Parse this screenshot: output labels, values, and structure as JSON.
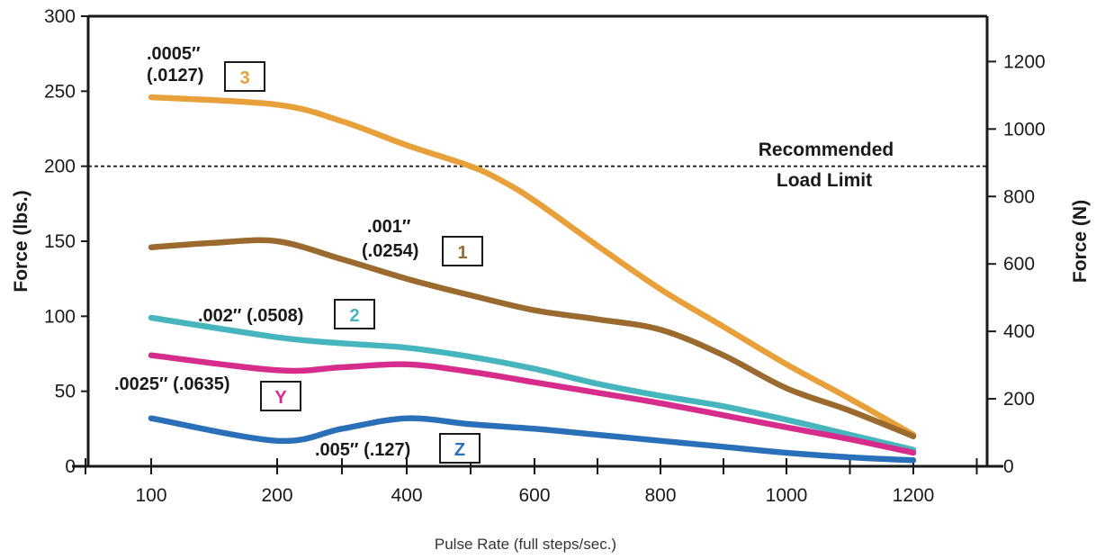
{
  "chart_data": {
    "type": "line",
    "xlabel": "Pulse Rate (full steps/sec.)",
    "ylabel_left": "Force (lbs.)",
    "ylabel_right": "Force (N)",
    "x_ticks": [
      "100",
      "200",
      "400",
      "600",
      "800",
      "1000",
      "1200"
    ],
    "x_tick_positions": [
      100,
      200,
      400,
      600,
      800,
      1000,
      1200
    ],
    "ylim_left": [
      0,
      300
    ],
    "yticks_left": [
      0,
      50,
      100,
      150,
      200,
      250,
      300
    ],
    "ylim_right": [
      0,
      1334.5
    ],
    "yticks_right": [
      0,
      200,
      400,
      600,
      800,
      1000,
      1200
    ],
    "recommended_load_limit": {
      "value": 200,
      "label_line1": "Recommended",
      "label_line2": "Load Limit"
    },
    "series": [
      {
        "name": "3",
        "color": "#E8A13A",
        "annotation_line1": ".0005″",
        "annotation_line2": "(.0127)",
        "points": [
          [
            100,
            246
          ],
          [
            200,
            241
          ],
          [
            300,
            230
          ],
          [
            400,
            214
          ],
          [
            500,
            200
          ],
          [
            550,
            190
          ],
          [
            600,
            177
          ],
          [
            700,
            147
          ],
          [
            800,
            118
          ],
          [
            900,
            93
          ],
          [
            1000,
            68
          ],
          [
            1100,
            45
          ],
          [
            1200,
            21
          ]
        ]
      },
      {
        "name": "1",
        "color": "#9A6A2E",
        "annotation_line1": ".001″",
        "annotation_line2": "(.0254)",
        "points": [
          [
            100,
            146
          ],
          [
            150,
            149
          ],
          [
            200,
            150
          ],
          [
            300,
            138
          ],
          [
            400,
            125
          ],
          [
            500,
            114
          ],
          [
            600,
            104
          ],
          [
            700,
            98
          ],
          [
            800,
            91
          ],
          [
            900,
            74
          ],
          [
            1000,
            52
          ],
          [
            1100,
            37
          ],
          [
            1200,
            20
          ]
        ]
      },
      {
        "name": "2",
        "color": "#46B5BD",
        "annotation_line1": ".002″ (.0508)",
        "points": [
          [
            100,
            99
          ],
          [
            200,
            86
          ],
          [
            300,
            82
          ],
          [
            400,
            79
          ],
          [
            500,
            73
          ],
          [
            600,
            65
          ],
          [
            700,
            55
          ],
          [
            800,
            47
          ],
          [
            900,
            40
          ],
          [
            1000,
            31
          ],
          [
            1100,
            21
          ],
          [
            1200,
            11
          ]
        ]
      },
      {
        "name": "Y",
        "color": "#D62D8C",
        "annotation_line1": ".0025″ (.0635)",
        "points": [
          [
            100,
            74
          ],
          [
            200,
            64
          ],
          [
            300,
            66
          ],
          [
            400,
            68
          ],
          [
            500,
            63
          ],
          [
            600,
            56
          ],
          [
            700,
            49
          ],
          [
            800,
            42
          ],
          [
            900,
            34
          ],
          [
            1000,
            26
          ],
          [
            1100,
            18
          ],
          [
            1200,
            9
          ]
        ]
      },
      {
        "name": "Z",
        "color": "#2A70B8",
        "annotation_line1": ".005″ (.127)",
        "points": [
          [
            100,
            32
          ],
          [
            200,
            17
          ],
          [
            300,
            25
          ],
          [
            400,
            32
          ],
          [
            500,
            28
          ],
          [
            600,
            25
          ],
          [
            700,
            21
          ],
          [
            800,
            17
          ],
          [
            900,
            13
          ],
          [
            1000,
            9
          ],
          [
            1100,
            6
          ],
          [
            1200,
            4
          ]
        ]
      }
    ]
  }
}
